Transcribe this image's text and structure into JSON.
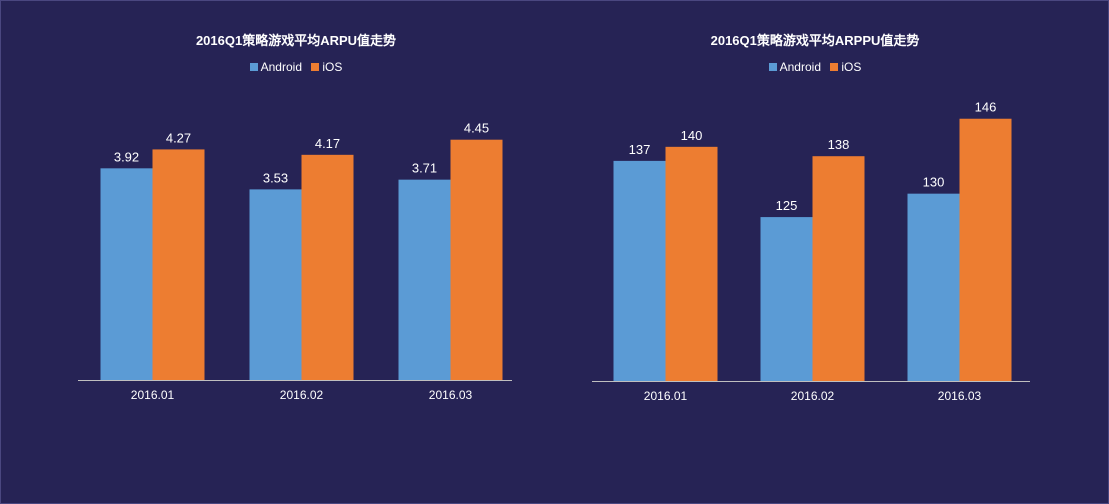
{
  "colors": {
    "background": "#262355",
    "android": "#5b9bd5",
    "ios": "#ed7d31",
    "text": "#ffffff",
    "axis": "#bfbfbf"
  },
  "chart_data": [
    {
      "type": "bar",
      "title": "2016Q1策略游戏平均ARPU值走势",
      "categories": [
        "2016.01",
        "2016.02",
        "2016.03"
      ],
      "series": [
        {
          "name": "Android",
          "values": [
            3.92,
            3.53,
            3.71
          ],
          "labels": [
            "3.92",
            "3.53",
            "3.71"
          ]
        },
        {
          "name": "iOS",
          "values": [
            4.27,
            4.17,
            4.45
          ],
          "labels": [
            "4.27",
            "4.17",
            "4.45"
          ]
        }
      ],
      "ylim": [
        0,
        5
      ],
      "grid": false,
      "legend": "top"
    },
    {
      "type": "bar",
      "title": "2016Q1策略游戏平均ARPPU值走势",
      "categories": [
        "2016.01",
        "2016.02",
        "2016.03"
      ],
      "series": [
        {
          "name": "Android",
          "values": [
            137,
            125,
            130
          ],
          "labels": [
            "137",
            "125",
            "130"
          ]
        },
        {
          "name": "iOS",
          "values": [
            140,
            138,
            146
          ],
          "labels": [
            "140",
            "138",
            "146"
          ]
        }
      ],
      "ylim": [
        90,
        150
      ],
      "grid": false,
      "legend": "top"
    }
  ]
}
